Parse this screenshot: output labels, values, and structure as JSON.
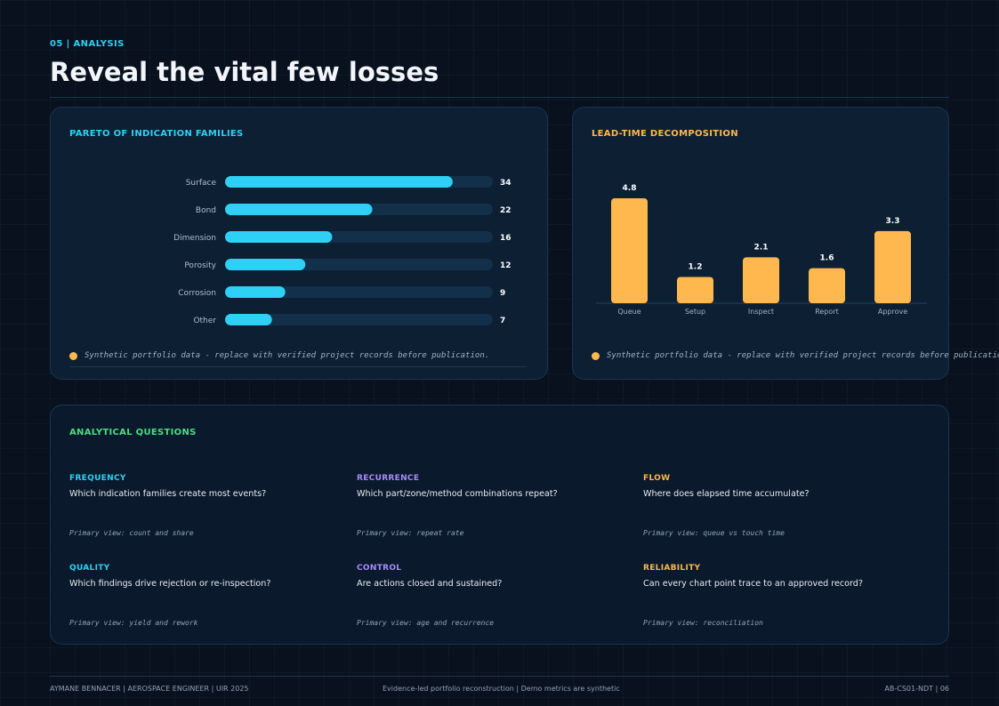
{
  "header": {
    "eyebrow": "05 | ANALYSIS",
    "title": "Reveal the vital few losses"
  },
  "pareto": {
    "title": "PARETO OF INDICATION FAMILIES",
    "note": "Synthetic portfolio data - replace with verified project records before publication."
  },
  "leadtime": {
    "title": "LEAD-TIME DECOMPOSITION",
    "note": "Synthetic portfolio data - replace with verified project records before publication."
  },
  "chart_data": [
    {
      "type": "bar",
      "orientation": "horizontal",
      "title": "PARETO OF INDICATION FAMILIES",
      "categories": [
        "Surface",
        "Bond",
        "Dimension",
        "Porosity",
        "Corrosion",
        "Other"
      ],
      "values": [
        34,
        22,
        16,
        12,
        9,
        7
      ],
      "xlim": [
        0,
        40
      ],
      "color": "#2fd0f5"
    },
    {
      "type": "bar",
      "orientation": "vertical",
      "title": "LEAD-TIME DECOMPOSITION",
      "categories": [
        "Queue",
        "Setup",
        "Inspect",
        "Report",
        "Approve"
      ],
      "values": [
        4.8,
        1.2,
        2.1,
        1.6,
        3.3
      ],
      "ylim": [
        0,
        4.8
      ],
      "color": "#ffb84d"
    }
  ],
  "questions": {
    "title": "ANALYTICAL QUESTIONS",
    "items": [
      {
        "label": "FREQUENCY",
        "text": "Which indication families create most events?",
        "view": "Primary view: count and share",
        "color": "#2fd0f5"
      },
      {
        "label": "RECURRENCE",
        "text": "Which part/zone/method combinations repeat?",
        "view": "Primary view: repeat rate",
        "color": "#a78bfa"
      },
      {
        "label": "FLOW",
        "text": "Where does elapsed time accumulate?",
        "view": "Primary view: queue vs touch time",
        "color": "#ffb84d"
      },
      {
        "label": "QUALITY",
        "text": "Which findings drive rejection or re-inspection?",
        "view": "Primary view: yield and rework",
        "color": "#2fd0f5"
      },
      {
        "label": "CONTROL",
        "text": "Are actions closed and sustained?",
        "view": "Primary view: age and recurrence",
        "color": "#a78bfa"
      },
      {
        "label": "RELIABILITY",
        "text": "Can every chart point trace to an approved record?",
        "view": "Primary view: reconciliation",
        "color": "#ffb84d"
      }
    ]
  },
  "footer": {
    "left": "AYMANE BENNACER | AEROSPACE ENGINEER | UIR 2025",
    "center": "Evidence-led portfolio reconstruction | Demo metrics are synthetic",
    "right": "AB-CS01-NDT | 06"
  },
  "colors": {
    "cyan": "#2fd0f5",
    "amber": "#ffb84d",
    "green": "#4ade80",
    "violet": "#a78bfa"
  }
}
